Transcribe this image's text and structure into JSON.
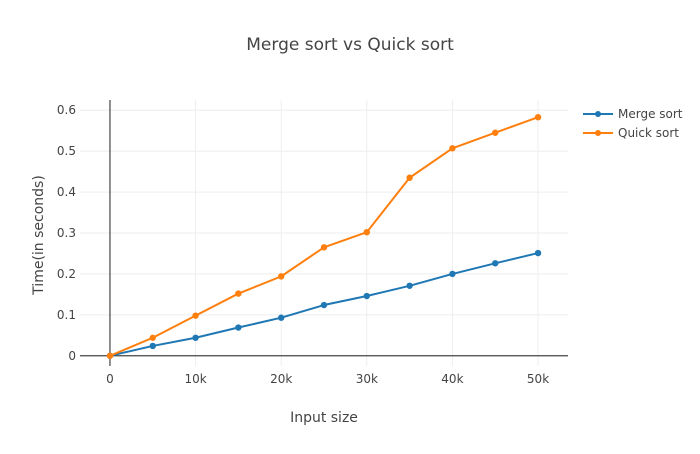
{
  "chart_data": {
    "type": "line",
    "title": "Merge sort vs Quick sort",
    "xlabel": "Input size",
    "ylabel": "Time(in seconds)",
    "x": [
      0,
      5000,
      10000,
      15000,
      20000,
      25000,
      30000,
      35000,
      40000,
      45000,
      50000
    ],
    "xlim": [
      -3500,
      53500
    ],
    "ylim": [
      -0.025,
      0.625
    ],
    "x_ticks": [
      0,
      10000,
      20000,
      30000,
      40000,
      50000
    ],
    "x_tick_labels": [
      "0",
      "10k",
      "20k",
      "30k",
      "40k",
      "50k"
    ],
    "y_ticks": [
      0,
      0.1,
      0.2,
      0.3,
      0.4,
      0.5,
      0.6
    ],
    "y_tick_labels": [
      "0",
      "0.1",
      "0.2",
      "0.3",
      "0.4",
      "0.5",
      "0.6"
    ],
    "grid": true,
    "legend_position": "top-right",
    "series": [
      {
        "name": "Merge sort",
        "color": "#1f77b4",
        "values": [
          0,
          0.024,
          0.044,
          0.069,
          0.093,
          0.124,
          0.146,
          0.171,
          0.2,
          0.226,
          0.251
        ]
      },
      {
        "name": "Quick sort",
        "color": "#ff7f0e",
        "values": [
          0,
          0.044,
          0.098,
          0.152,
          0.194,
          0.265,
          0.302,
          0.435,
          0.507,
          0.545,
          0.583
        ]
      }
    ]
  }
}
